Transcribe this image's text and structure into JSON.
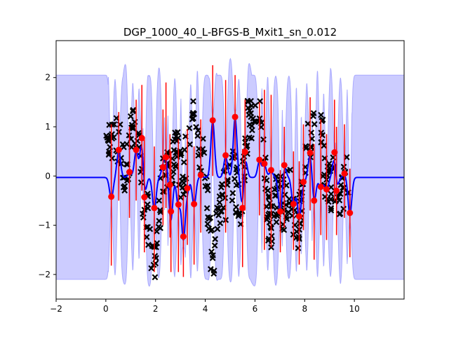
{
  "chart_data": {
    "type": "scatter",
    "title": "DGP_1000_40_L-BFGS-B_Mxit1_sn_0.012",
    "xlabel": "",
    "ylabel": "",
    "xlim": [
      -2,
      12
    ],
    "ylim": [
      -2.5,
      2.75
    ],
    "xticks": [
      -2,
      0,
      2,
      4,
      6,
      8,
      10
    ],
    "yticks": [
      -2,
      -1,
      0,
      1,
      2
    ],
    "grid": false,
    "colors": {
      "band": "#ccccff",
      "band_edge": "#aaaaff",
      "mean": "#0000ff",
      "inducing": "#ff0000",
      "data": "#000000"
    },
    "band_outside": [
      -2.1,
      2.05
    ],
    "inducing_points": [
      {
        "x": 0.22,
        "y": -0.42,
        "lo": -1.82,
        "hi": 1.05
      },
      {
        "x": 0.52,
        "y": 0.53,
        "lo": -0.5,
        "hi": 1.3
      },
      {
        "x": 0.95,
        "y": 0.08,
        "lo": -0.85,
        "hi": 1.0
      },
      {
        "x": 1.22,
        "y": 0.53,
        "lo": -0.5,
        "hi": 1.55
      },
      {
        "x": 1.45,
        "y": 0.77,
        "lo": -0.3,
        "hi": 1.85
      },
      {
        "x": 1.55,
        "y": -0.43,
        "lo": -1.55,
        "hi": 0.75
      },
      {
        "x": 1.95,
        "y": -0.65,
        "lo": -1.95,
        "hi": 0.6
      },
      {
        "x": 2.3,
        "y": 0.18,
        "lo": -1.0,
        "hi": 1.35
      },
      {
        "x": 2.42,
        "y": 0.38,
        "lo": -0.65,
        "hi": 1.9
      },
      {
        "x": 2.58,
        "y": -0.18,
        "lo": -1.25,
        "hi": 0.85
      },
      {
        "x": 2.62,
        "y": -0.72,
        "lo": -1.95,
        "hi": 0.5
      },
      {
        "x": 2.92,
        "y": -0.58,
        "lo": -1.95,
        "hi": 0.75
      },
      {
        "x": 3.12,
        "y": -1.23,
        "lo": -2.05,
        "hi": -0.4
      },
      {
        "x": 3.28,
        "y": -0.25,
        "lo": -1.4,
        "hi": 0.95
      },
      {
        "x": 3.55,
        "y": -0.57,
        "lo": -1.8,
        "hi": 0.6
      },
      {
        "x": 3.82,
        "y": 0.02,
        "lo": -1.15,
        "hi": 1.15
      },
      {
        "x": 4.3,
        "y": 1.13,
        "lo": 0.0,
        "hi": 2.25
      },
      {
        "x": 4.82,
        "y": 0.42,
        "lo": -1.15,
        "hi": 1.95
      },
      {
        "x": 5.2,
        "y": 1.2,
        "lo": 0.3,
        "hi": 2.05
      },
      {
        "x": 5.5,
        "y": -0.65,
        "lo": -1.85,
        "hi": 0.55
      },
      {
        "x": 5.6,
        "y": 0.49,
        "lo": -0.7,
        "hi": 1.55
      },
      {
        "x": 6.18,
        "y": 0.33,
        "lo": -0.8,
        "hi": 1.5
      },
      {
        "x": 6.38,
        "y": 0.25,
        "lo": -1.5,
        "hi": 1.75
      },
      {
        "x": 6.65,
        "y": 0.12,
        "lo": -1.45,
        "hi": 1.65
      },
      {
        "x": 7.02,
        "y": -0.72,
        "lo": -1.55,
        "hi": 0.12
      },
      {
        "x": 7.18,
        "y": 0.22,
        "lo": -1.05,
        "hi": 1.0
      },
      {
        "x": 7.55,
        "y": -0.57,
        "lo": -1.5,
        "hi": 0.5
      },
      {
        "x": 7.78,
        "y": -0.82,
        "lo": -1.8,
        "hi": 0.3
      },
      {
        "x": 7.95,
        "y": -0.12,
        "lo": -1.1,
        "hi": 1.05
      },
      {
        "x": 8.22,
        "y": 0.47,
        "lo": -0.7,
        "hi": 1.6
      },
      {
        "x": 8.38,
        "y": -0.5,
        "lo": -1.7,
        "hi": 0.65
      },
      {
        "x": 8.65,
        "y": -0.22,
        "lo": -1.2,
        "hi": 1.15
      },
      {
        "x": 8.88,
        "y": -0.27,
        "lo": -1.3,
        "hi": 0.85
      },
      {
        "x": 9.2,
        "y": 0.48,
        "lo": -0.5,
        "hi": 1.55
      },
      {
        "x": 9.28,
        "y": -0.3,
        "lo": -1.2,
        "hi": 1.0
      },
      {
        "x": 9.6,
        "y": 0.05,
        "lo": -0.85,
        "hi": 1.05
      },
      {
        "x": 9.82,
        "y": -0.75,
        "lo": -1.65,
        "hi": 0.15
      }
    ]
  }
}
